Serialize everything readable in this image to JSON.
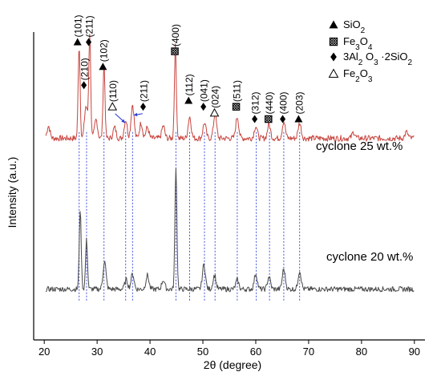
{
  "chart_data": {
    "type": "line",
    "xlabel": "2θ (degree)",
    "ylabel": "Intensity (a.u.)",
    "xlim": [
      18,
      92
    ],
    "ylim": [
      0,
      100
    ],
    "xticks": [
      20,
      30,
      40,
      50,
      60,
      70,
      80,
      90
    ],
    "xtick_labels": [
      "20",
      "30",
      "40",
      "50",
      "60",
      "70",
      "80",
      "90"
    ],
    "grid": false,
    "series": [
      {
        "name": "cyclone 25 wt.%",
        "color": "#c8453f",
        "baseline": 65.5,
        "noise": 0.8,
        "peaks": [
          {
            "x": 20.8,
            "h": 4.0
          },
          {
            "x": 26.6,
            "h": 30.5
          },
          {
            "x": 27.9,
            "h": 10.5
          },
          {
            "x": 28.6,
            "h": 34.0
          },
          {
            "x": 29.8,
            "h": 6.0
          },
          {
            "x": 31.3,
            "h": 24.0
          },
          {
            "x": 33.3,
            "h": 3.5
          },
          {
            "x": 35.4,
            "h": 6.0
          },
          {
            "x": 36.7,
            "h": 11.0
          },
          {
            "x": 38.3,
            "h": 5.0
          },
          {
            "x": 39.5,
            "h": 3.5
          },
          {
            "x": 42.5,
            "h": 4.0
          },
          {
            "x": 44.8,
            "h": 30.0
          },
          {
            "x": 47.5,
            "h": 7.0
          },
          {
            "x": 50.3,
            "h": 5.0
          },
          {
            "x": 52.3,
            "h": 8.0
          },
          {
            "x": 56.5,
            "h": 7.0
          },
          {
            "x": 60.0,
            "h": 4.0
          },
          {
            "x": 62.5,
            "h": 4.5
          },
          {
            "x": 65.3,
            "h": 5.5
          },
          {
            "x": 68.3,
            "h": 5.0
          },
          {
            "x": 78.5,
            "h": 2.0
          },
          {
            "x": 88.5,
            "h": 2.0
          }
        ]
      },
      {
        "name": "cyclone 20 wt.%",
        "color": "#4a4a4a",
        "baseline": 16.5,
        "noise": 0.7,
        "peaks": [
          {
            "x": 26.8,
            "h": 26.0
          },
          {
            "x": 28.0,
            "h": 16.0
          },
          {
            "x": 31.4,
            "h": 9.0
          },
          {
            "x": 35.5,
            "h": 3.0
          },
          {
            "x": 36.7,
            "h": 5.0
          },
          {
            "x": 39.5,
            "h": 4.5
          },
          {
            "x": 42.5,
            "h": 3.0
          },
          {
            "x": 44.9,
            "h": 40.0
          },
          {
            "x": 50.2,
            "h": 8.0
          },
          {
            "x": 52.2,
            "h": 4.5
          },
          {
            "x": 56.5,
            "h": 3.0
          },
          {
            "x": 60.0,
            "h": 5.0
          },
          {
            "x": 62.5,
            "h": 4.0
          },
          {
            "x": 65.3,
            "h": 6.5
          },
          {
            "x": 68.3,
            "h": 6.0
          }
        ]
      }
    ],
    "reference_lines": [
      26.6,
      28.0,
      31.3,
      35.4,
      36.7,
      44.9,
      47.5,
      50.3,
      52.3,
      56.5,
      60.1,
      62.6,
      65.3,
      68.3
    ],
    "peak_labels": [
      {
        "text": "(101)",
        "phase": "SiO2",
        "x": 26.6,
        "y": 97
      },
      {
        "text": "(211)",
        "phase": "3Al2O3·2SiO2",
        "x": 28.7,
        "y": 97
      },
      {
        "text": "(210)",
        "phase": "3Al2O3·2SiO2",
        "x": 27.8,
        "y": 83
      },
      {
        "text": "(102)",
        "phase": "SiO2",
        "x": 31.4,
        "y": 89
      },
      {
        "text": "(110)",
        "phase": "Fe2O3",
        "x": 33.2,
        "y": 76
      },
      {
        "text": "(211)",
        "phase": "3Al2O3·2SiO2",
        "x": 39.0,
        "y": 76
      },
      {
        "text": "(400)",
        "phase": "Fe3O4",
        "x": 45.0,
        "y": 94
      },
      {
        "text": "(112)",
        "phase": "SiO2",
        "x": 47.6,
        "y": 78
      },
      {
        "text": "(041)",
        "phase": "3Al2O3·2SiO2",
        "x": 50.4,
        "y": 76
      },
      {
        "text": "(024)",
        "phase": "Fe2O3",
        "x": 52.5,
        "y": 74
      },
      {
        "text": "(511)",
        "phase": "Fe3O4",
        "x": 56.6,
        "y": 76
      },
      {
        "text": "(312)",
        "phase": "3Al2O3·2SiO2",
        "x": 60.1,
        "y": 72
      },
      {
        "text": "(440)",
        "phase": "Fe3O4",
        "x": 62.7,
        "y": 72
      },
      {
        "text": "(400)",
        "phase": "3Al2O3·2SiO2",
        "x": 65.4,
        "y": 72
      },
      {
        "text": "(203)",
        "phase": "SiO2",
        "x": 68.4,
        "y": 72
      }
    ],
    "legend": {
      "placement": "top-right",
      "entries": [
        {
          "marker": "triangle-filled",
          "base": "SiO",
          "sub": "2",
          "rest": ""
        },
        {
          "marker": "square-hatched",
          "base": "Fe",
          "sub": "3",
          "mid": "O",
          "sub2": "4"
        },
        {
          "marker": "diamond-filled",
          "text": "3Al",
          "sub": "2",
          "text2": " O",
          "sub2": "3",
          "text3": " ·2SiO",
          "sub3": "2"
        },
        {
          "marker": "triangle-open",
          "base": "Fe",
          "sub": "2",
          "mid": "O",
          "sub2": "3"
        }
      ]
    },
    "curve_labels": [
      {
        "text": "cyclone 25 wt.%",
        "series": 0
      },
      {
        "text": "cyclone 20 wt.%",
        "series": 1
      }
    ]
  }
}
